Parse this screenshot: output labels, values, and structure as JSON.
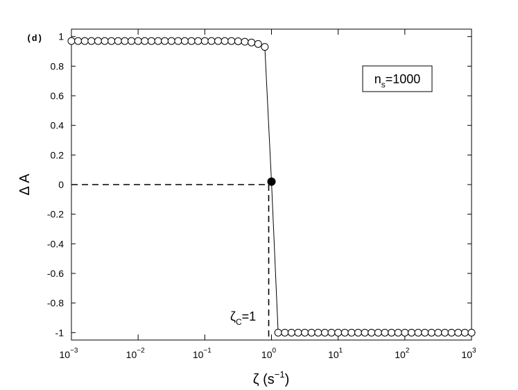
{
  "chart_data": {
    "type": "line",
    "panel_label": "(d)",
    "ylabel": "Δ A",
    "xlabel": [
      "ζ (s",
      "−1",
      ")"
    ],
    "legend_box": [
      "n",
      "s",
      "=1000"
    ],
    "critical_label": [
      "ζ",
      "C",
      "=1"
    ],
    "critical_point": {
      "x": 1,
      "y": 0
    },
    "x": [
      0.001,
      0.001259,
      0.001585,
      0.001995,
      0.002512,
      0.003162,
      0.003981,
      0.005012,
      0.00631,
      0.007943,
      0.01,
      0.01259,
      0.01585,
      0.01995,
      0.02512,
      0.03162,
      0.03981,
      0.05012,
      0.0631,
      0.07943,
      0.1,
      0.1259,
      0.1585,
      0.1995,
      0.2512,
      0.3162,
      0.3981,
      0.5012,
      0.631,
      0.7943,
      1,
      1.259,
      1.585,
      1.995,
      2.512,
      3.162,
      3.981,
      5.012,
      6.31,
      7.943,
      10,
      12.59,
      15.85,
      19.95,
      25.12,
      31.62,
      39.81,
      50.12,
      63.1,
      79.43,
      100,
      125.9,
      158.5,
      199.5,
      251.2,
      316.2,
      398.1,
      501.2,
      631,
      794.3,
      1000
    ],
    "series": [
      {
        "color": "#000000",
        "filled_index": 30,
        "values": [
          0.97,
          0.97,
          0.97,
          0.97,
          0.97,
          0.97,
          0.97,
          0.97,
          0.97,
          0.97,
          0.97,
          0.97,
          0.97,
          0.97,
          0.97,
          0.97,
          0.97,
          0.97,
          0.97,
          0.97,
          0.97,
          0.97,
          0.97,
          0.97,
          0.97,
          0.968,
          0.965,
          0.96,
          0.95,
          0.93,
          0.02,
          -1,
          -1,
          -1,
          -1,
          -1,
          -1,
          -1,
          -1,
          -1,
          -1,
          -1,
          -1,
          -1,
          -1,
          -1,
          -1,
          -1,
          -1,
          -1,
          -1,
          -1,
          -1,
          -1,
          -1,
          -1,
          -1,
          -1,
          -1,
          -1,
          -1
        ]
      }
    ],
    "log_x": true,
    "xlim": [
      0.001,
      1000
    ],
    "xticks": [
      {
        "value": 0.001,
        "label": [
          "10",
          "−3"
        ]
      },
      {
        "value": 0.01,
        "label": [
          "10",
          "−2"
        ]
      },
      {
        "value": 0.1,
        "label": [
          "10",
          "−1"
        ]
      },
      {
        "value": 1,
        "label": [
          "10",
          "0"
        ]
      },
      {
        "value": 10,
        "label": [
          "10",
          "1"
        ]
      },
      {
        "value": 100,
        "label": [
          "10",
          "2"
        ]
      },
      {
        "value": 1000,
        "label": [
          "10",
          "3"
        ]
      }
    ],
    "ylim": [
      -1.05,
      1.05
    ],
    "yticks": [
      -1,
      -0.8,
      -0.6,
      -0.4,
      -0.2,
      0,
      0.2,
      0.4,
      0.6,
      0.8,
      1
    ]
  }
}
